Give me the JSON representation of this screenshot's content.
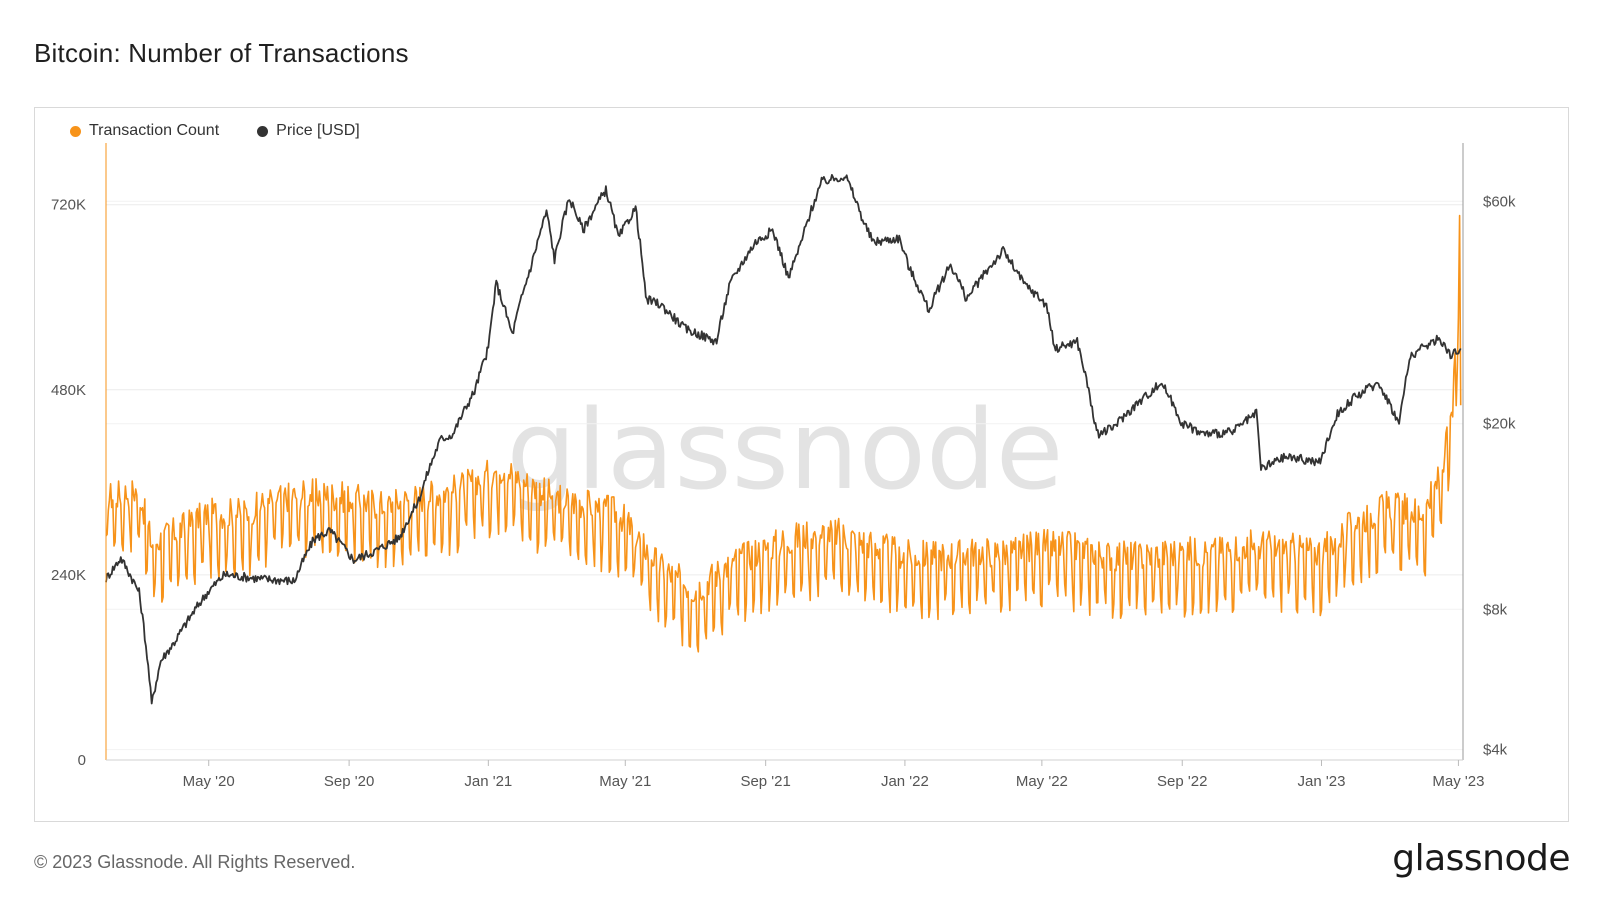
{
  "header": {
    "title": "Bitcoin: Number of Transactions"
  },
  "legend": [
    {
      "label": "Transaction Count",
      "color": "#f7931a"
    },
    {
      "label": "Price [USD]",
      "color": "#333333"
    }
  ],
  "watermark": "glassnode",
  "footer": {
    "copyright": "© 2023 Glassnode. All Rights Reserved.",
    "brand": "glassnode"
  },
  "chart_data": {
    "type": "line",
    "title": "Bitcoin: Number of Transactions",
    "x_range": [
      "2020-02-01",
      "2023-05-05"
    ],
    "x_ticks": [
      {
        "date": "2020-05-01",
        "label": "May '20"
      },
      {
        "date": "2020-09-01",
        "label": "Sep '20"
      },
      {
        "date": "2021-01-01",
        "label": "Jan '21"
      },
      {
        "date": "2021-05-01",
        "label": "May '21"
      },
      {
        "date": "2021-09-01",
        "label": "Sep '21"
      },
      {
        "date": "2022-01-01",
        "label": "Jan '22"
      },
      {
        "date": "2022-05-01",
        "label": "May '22"
      },
      {
        "date": "2022-09-01",
        "label": "Sep '22"
      },
      {
        "date": "2023-01-01",
        "label": "Jan '23"
      },
      {
        "date": "2023-05-01",
        "label": "May '23"
      }
    ],
    "y_left": {
      "ticks": [
        0,
        240000,
        480000,
        720000
      ],
      "tick_labels": [
        "0",
        "240K",
        "480K",
        "720K"
      ],
      "range": [
        0,
        800000
      ]
    },
    "y_right": {
      "scale": "log",
      "ticks": [
        4000,
        8000,
        20000,
        60000
      ],
      "tick_labels": [
        "$4k",
        "$8k",
        "$20k",
        "$60k"
      ],
      "range": [
        3800,
        80000
      ]
    },
    "grid": true,
    "legend_position": "top-left",
    "series": [
      {
        "name": "Transaction Count",
        "color": "#f7931a",
        "axis": "left",
        "weekly_oscillation": 45000,
        "points": [
          [
            "2020-02-01",
            320000
          ],
          [
            "2020-03-01",
            330000
          ],
          [
            "2020-03-12",
            260000
          ],
          [
            "2020-04-01",
            275000
          ],
          [
            "2020-05-01",
            300000
          ],
          [
            "2020-06-01",
            300000
          ],
          [
            "2020-07-01",
            320000
          ],
          [
            "2020-08-01",
            325000
          ],
          [
            "2020-09-01",
            320000
          ],
          [
            "2020-10-01",
            310000
          ],
          [
            "2020-11-01",
            320000
          ],
          [
            "2020-12-01",
            330000
          ],
          [
            "2021-01-01",
            350000
          ],
          [
            "2021-01-15",
            360000
          ],
          [
            "2021-02-01",
            340000
          ],
          [
            "2021-03-01",
            320000
          ],
          [
            "2021-04-01",
            310000
          ],
          [
            "2021-04-25",
            300000
          ],
          [
            "2021-05-01",
            290000
          ],
          [
            "2021-06-01",
            230000
          ],
          [
            "2021-07-01",
            200000
          ],
          [
            "2021-08-01",
            235000
          ],
          [
            "2021-09-01",
            255000
          ],
          [
            "2021-10-01",
            270000
          ],
          [
            "2021-11-01",
            275000
          ],
          [
            "2021-12-01",
            260000
          ],
          [
            "2022-01-01",
            245000
          ],
          [
            "2022-02-01",
            245000
          ],
          [
            "2022-03-01",
            250000
          ],
          [
            "2022-04-01",
            250000
          ],
          [
            "2022-05-01",
            260000
          ],
          [
            "2022-06-01",
            255000
          ],
          [
            "2022-07-01",
            245000
          ],
          [
            "2022-08-01",
            245000
          ],
          [
            "2022-09-01",
            250000
          ],
          [
            "2022-10-01",
            250000
          ],
          [
            "2022-11-01",
            260000
          ],
          [
            "2022-12-01",
            255000
          ],
          [
            "2023-01-01",
            250000
          ],
          [
            "2023-02-01",
            290000
          ],
          [
            "2023-03-01",
            310000
          ],
          [
            "2023-04-01",
            300000
          ],
          [
            "2023-04-15",
            350000
          ],
          [
            "2023-04-25",
            420000
          ],
          [
            "2023-05-01",
            560000
          ],
          [
            "2023-05-02",
            670000
          ],
          [
            "2023-05-03",
            460000
          ]
        ]
      },
      {
        "name": "Price [USD]",
        "color": "#333333",
        "axis": "right",
        "points": [
          [
            "2020-02-01",
            9300
          ],
          [
            "2020-02-14",
            10300
          ],
          [
            "2020-03-01",
            8700
          ],
          [
            "2020-03-12",
            5000
          ],
          [
            "2020-03-20",
            6200
          ],
          [
            "2020-04-01",
            6800
          ],
          [
            "2020-04-30",
            8700
          ],
          [
            "2020-05-15",
            9500
          ],
          [
            "2020-06-15",
            9300
          ],
          [
            "2020-07-15",
            9200
          ],
          [
            "2020-08-01",
            11300
          ],
          [
            "2020-08-15",
            11800
          ],
          [
            "2020-09-05",
            10200
          ],
          [
            "2020-09-25",
            10700
          ],
          [
            "2020-10-15",
            11400
          ],
          [
            "2020-11-01",
            13700
          ],
          [
            "2020-11-20",
            18500
          ],
          [
            "2020-12-01",
            19000
          ],
          [
            "2020-12-20",
            23500
          ],
          [
            "2021-01-01",
            29000
          ],
          [
            "2021-01-08",
            40000
          ],
          [
            "2021-01-22",
            31000
          ],
          [
            "2021-02-08",
            44000
          ],
          [
            "2021-02-21",
            57000
          ],
          [
            "2021-02-28",
            45000
          ],
          [
            "2021-03-13",
            61000
          ],
          [
            "2021-03-25",
            52000
          ],
          [
            "2021-04-14",
            63500
          ],
          [
            "2021-04-25",
            50000
          ],
          [
            "2021-05-10",
            58000
          ],
          [
            "2021-05-19",
            37000
          ],
          [
            "2021-06-01",
            36000
          ],
          [
            "2021-06-22",
            32000
          ],
          [
            "2021-07-20",
            30000
          ],
          [
            "2021-08-01",
            40000
          ],
          [
            "2021-08-23",
            49000
          ],
          [
            "2021-09-07",
            52000
          ],
          [
            "2021-09-21",
            41000
          ],
          [
            "2021-10-01",
            48000
          ],
          [
            "2021-10-20",
            66000
          ],
          [
            "2021-11-10",
            68000
          ],
          [
            "2021-11-26",
            54000
          ],
          [
            "2021-12-04",
            49000
          ],
          [
            "2021-12-27",
            50000
          ],
          [
            "2022-01-05",
            43000
          ],
          [
            "2022-01-22",
            35000
          ],
          [
            "2022-02-10",
            44000
          ],
          [
            "2022-02-24",
            37000
          ],
          [
            "2022-03-28",
            47000
          ],
          [
            "2022-04-15",
            40000
          ],
          [
            "2022-05-05",
            36000
          ],
          [
            "2022-05-12",
            29000
          ],
          [
            "2022-06-01",
            30000
          ],
          [
            "2022-06-18",
            19000
          ],
          [
            "2022-07-01",
            19500
          ],
          [
            "2022-08-14",
            24500
          ],
          [
            "2022-09-01",
            20000
          ],
          [
            "2022-09-20",
            19000
          ],
          [
            "2022-10-15",
            19200
          ],
          [
            "2022-11-05",
            21000
          ],
          [
            "2022-11-09",
            16000
          ],
          [
            "2022-12-01",
            17000
          ],
          [
            "2022-12-31",
            16500
          ],
          [
            "2023-01-15",
            21000
          ],
          [
            "2023-02-01",
            23000
          ],
          [
            "2023-02-20",
            24500
          ],
          [
            "2023-03-10",
            20000
          ],
          [
            "2023-03-20",
            28000
          ],
          [
            "2023-04-14",
            30500
          ],
          [
            "2023-04-25",
            28000
          ],
          [
            "2023-05-03",
            29000
          ]
        ]
      }
    ]
  }
}
